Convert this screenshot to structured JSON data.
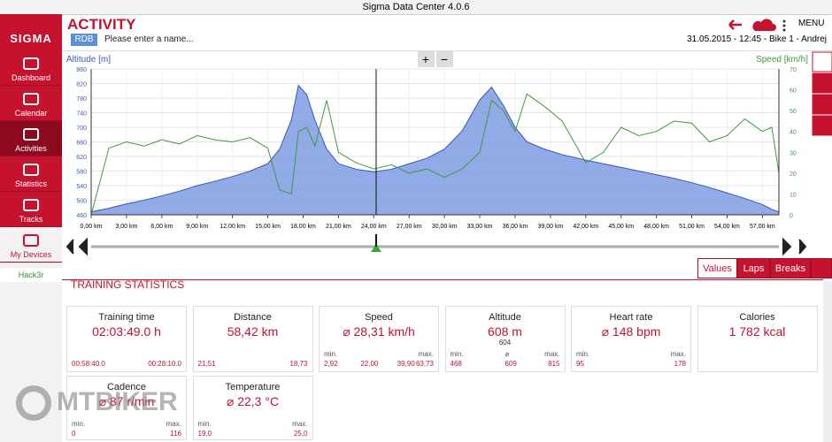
{
  "window": {
    "title": "Sigma Data Center 4.0.6"
  },
  "sidebar": {
    "logo": "SIGMA",
    "items": [
      "Dashboard",
      "Calendar",
      "Activities",
      "Statistics",
      "Tracks",
      "My Devices"
    ],
    "device": "Hack3r"
  },
  "header": {
    "title": "ACTIVITY",
    "tag": "RDB",
    "name_placeholder": "Please enter a name...",
    "menu": "MENU",
    "info": "31.05.2015 - 12:45 - Bike 1 - Andrej"
  },
  "chart_controls": [
    "+",
    "−"
  ],
  "chart_data": {
    "type": "area",
    "grid": true,
    "x": [
      0,
      1.5,
      3,
      4.5,
      6,
      7.5,
      9,
      10.5,
      12,
      13.5,
      15,
      16,
      17,
      17.6,
      18.3,
      19,
      20,
      21,
      22.5,
      24,
      25.5,
      27,
      28.5,
      30,
      31.5,
      33,
      34,
      35,
      36,
      37,
      38.5,
      40,
      42,
      43.5,
      45,
      46.5,
      48,
      49.5,
      51,
      52.5,
      54,
      55.5,
      57,
      57.8,
      58.4
    ],
    "series": [
      {
        "name": "Altitude [m]",
        "type": "area",
        "color": "#7f9be0",
        "values": [
          468,
          478,
          490,
          500,
          512,
          525,
          540,
          552,
          565,
          580,
          600,
          640,
          720,
          815,
          790,
          720,
          640,
          600,
          585,
          578,
          585,
          600,
          615,
          640,
          690,
          775,
          810,
          760,
          700,
          660,
          640,
          625,
          610,
          600,
          590,
          580,
          570,
          560,
          548,
          535,
          520,
          505,
          488,
          475,
          468
        ]
      },
      {
        "name": "Speed [km/h]",
        "type": "line",
        "axis": "y2",
        "color": "#3f9a3f",
        "values": [
          0,
          32,
          35,
          33,
          36,
          34,
          38,
          36,
          35,
          37,
          32,
          12,
          10,
          40,
          42,
          33,
          55,
          30,
          25,
          22,
          24,
          20,
          22,
          18,
          22,
          30,
          55,
          50,
          40,
          58,
          52,
          45,
          25,
          30,
          42,
          38,
          40,
          45,
          44,
          35,
          38,
          46,
          40,
          42,
          20
        ]
      }
    ],
    "xlim": [
      0,
      58.4
    ],
    "xticks": [
      {
        "value": 0,
        "label": "0,00 km"
      },
      {
        "value": 3,
        "label": "3,00 km"
      },
      {
        "value": 6,
        "label": "6,00 km"
      },
      {
        "value": 9,
        "label": "9,00 km"
      },
      {
        "value": 12,
        "label": "12,00 km"
      },
      {
        "value": 15,
        "label": "15,00 km"
      },
      {
        "value": 18,
        "label": "18,00 km"
      },
      {
        "value": 21,
        "label": "21,00 km"
      },
      {
        "value": 24,
        "label": "24,00 km"
      },
      {
        "value": 27,
        "label": "27,00 km"
      },
      {
        "value": 30,
        "label": "30,00 km"
      },
      {
        "value": 33,
        "label": "33,00 km"
      },
      {
        "value": 36,
        "label": "36,00 km"
      },
      {
        "value": 39,
        "label": "39,00 km"
      },
      {
        "value": 42,
        "label": "42,00 km"
      },
      {
        "value": 45,
        "label": "45,00 km"
      },
      {
        "value": 48,
        "label": "48,00 km"
      },
      {
        "value": 51,
        "label": "51,00 km"
      },
      {
        "value": 54,
        "label": "54,00 km"
      },
      {
        "value": 57,
        "label": "57,00 km"
      }
    ],
    "ylim": [
      460,
      860
    ],
    "yticks": [
      460,
      500,
      540,
      580,
      620,
      660,
      700,
      740,
      780,
      820,
      860
    ],
    "y2lim": [
      0,
      70
    ],
    "y2ticks": [
      0,
      10,
      20,
      30,
      40,
      50,
      60,
      70
    ],
    "cursor": 24.2
  },
  "tabs": [
    "Values",
    "Laps",
    "Breaks"
  ],
  "stats": {
    "title": "TRAINING STATISTICS",
    "cards": [
      {
        "title": "Training time",
        "value": "02:03:49.0 h",
        "details": [
          {
            "value": "00:58:40.0"
          },
          {
            "value": "00:28:10.0"
          }
        ]
      },
      {
        "title": "Distance",
        "value": "58,42 km",
        "details": [
          {
            "value": "21,51"
          },
          {
            "value": "18,73"
          }
        ]
      },
      {
        "title": "Speed",
        "value": "⌀ 28,31 km/h",
        "details": [
          {
            "label": "min.",
            "value": "2,92"
          },
          {
            "value": "22,00"
          },
          {
            "value": "39,90"
          },
          {
            "label": "max.",
            "value": "63,73"
          }
        ]
      },
      {
        "title": "Altitude",
        "value": "608 m",
        "value2": "604",
        "details": [
          {
            "label": "min.",
            "value": "468"
          },
          {
            "label": "⌀",
            "value": "609"
          },
          {
            "label": "max.",
            "value": "815"
          }
        ]
      },
      {
        "title": "Heart rate",
        "value": "⌀ 148 bpm",
        "details": [
          {
            "label": "min.",
            "value": "95"
          },
          {
            "label": "max.",
            "value": "178"
          }
        ]
      },
      {
        "title": "Calories",
        "value": "1 782 kcal"
      },
      {
        "title": "Cadence",
        "value": "⌀ 87 r/min",
        "details": [
          {
            "label": "min.",
            "value": "0"
          },
          {
            "label": "max.",
            "value": "116"
          }
        ]
      },
      {
        "title": "Temperature",
        "value": "⌀ 22,3 °C",
        "details": [
          {
            "label": "min.",
            "value": "19,0"
          },
          {
            "label": "max.",
            "value": "25,0"
          }
        ]
      }
    ]
  },
  "watermark": "MTBIKER"
}
